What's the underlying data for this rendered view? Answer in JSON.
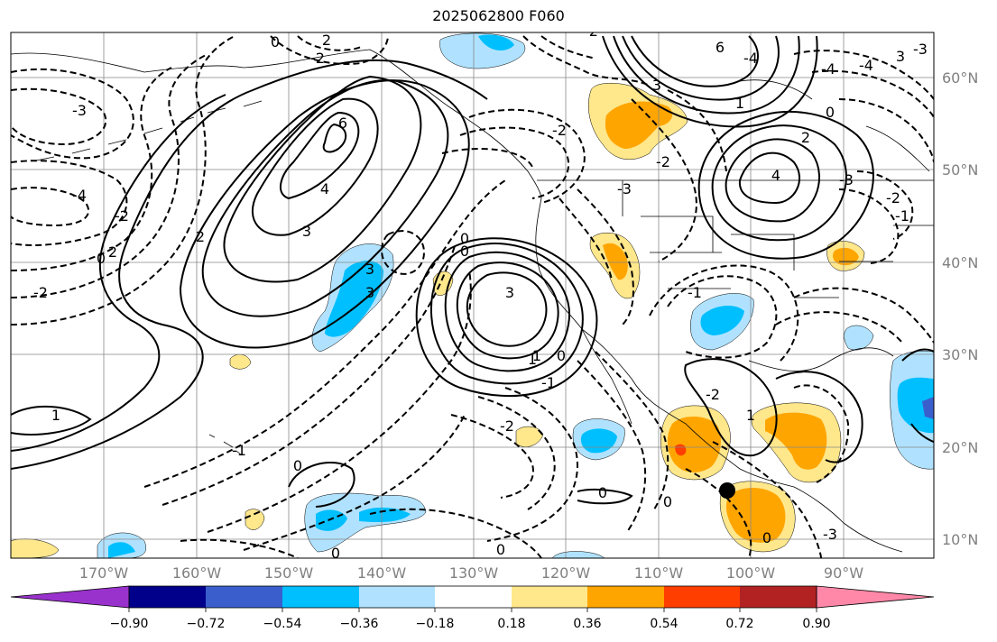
{
  "title": "2025062800 F060",
  "lat_labels": [
    "60°N",
    "50°N",
    "40°N",
    "30°N",
    "20°N",
    "10°N"
  ],
  "lon_labels": [
    "170°W",
    "160°W",
    "150°W",
    "140°W",
    "130°W",
    "120°W",
    "110°W",
    "100°W",
    "90°W"
  ],
  "colorbar": {
    "ticks": [
      "−0.90",
      "−0.72",
      "−0.54",
      "−0.36",
      "−0.18",
      "0.18",
      "0.36",
      "0.54",
      "0.72",
      "0.90"
    ],
    "colors": [
      "#9932CC",
      "#00008B",
      "#3A5FCD",
      "#00BFFF",
      "#B0E2FF",
      "#FFFFFF",
      "#FFE78C",
      "#FFA500",
      "#FF3E00",
      "#B22222",
      "#FF88A8"
    ]
  },
  "contour_labels": [
    "0",
    "2",
    "-2",
    "6",
    "4",
    "-3",
    "3",
    "-4",
    "-2",
    "0",
    "1",
    "6",
    "-4",
    "2",
    "4",
    "3",
    "-3",
    "-2",
    "0",
    "-3",
    "3",
    "0",
    "1",
    "-1",
    "-2",
    "-1",
    "3",
    "-2",
    "0",
    "0",
    "0",
    "-1",
    "1",
    "-2",
    "2",
    "-4",
    "3",
    "-4",
    "-3",
    "-2",
    "-1",
    "1",
    "0",
    "0",
    "2",
    "-2",
    "-3",
    "0",
    "0",
    "3",
    "-2",
    "0",
    "1"
  ],
  "marker": "station-dot"
}
